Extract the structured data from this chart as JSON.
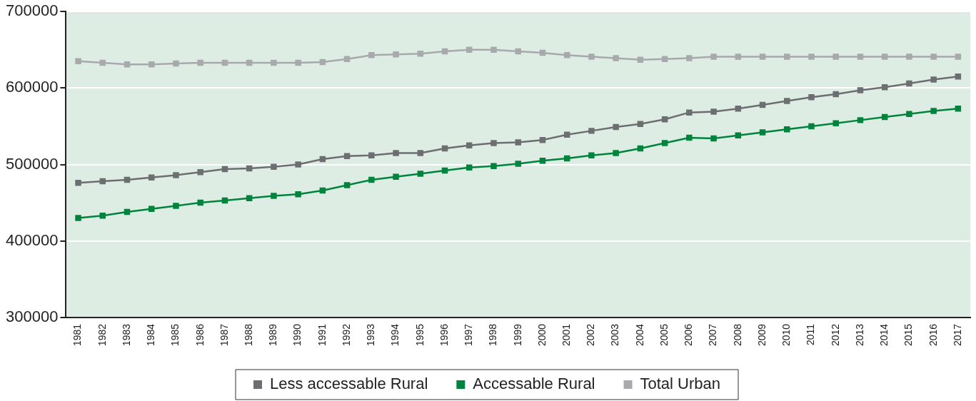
{
  "chart_data": {
    "type": "line",
    "categories": [
      "1981",
      "1982",
      "1983",
      "1984",
      "1985",
      "1986",
      "1987",
      "1988",
      "1989",
      "1990",
      "1991",
      "1992",
      "1993",
      "1994",
      "1995",
      "1996",
      "1997",
      "1998",
      "1999",
      "2000",
      "2001",
      "2002",
      "2003",
      "2004",
      "2005",
      "2006",
      "2007",
      "2008",
      "2009",
      "2010",
      "2011",
      "2012",
      "2013",
      "2014",
      "2015",
      "2016",
      "2017"
    ],
    "series": [
      {
        "name": "Less accessable Rural",
        "color": "#6d6e71",
        "values": [
          476000,
          478000,
          480000,
          483000,
          486000,
          490000,
          494000,
          495000,
          497000,
          500000,
          507000,
          511000,
          512000,
          515000,
          515000,
          521000,
          525000,
          528000,
          529000,
          532000,
          539000,
          544000,
          549000,
          553000,
          559000,
          568000,
          569000,
          573000,
          578000,
          583000,
          588000,
          592000,
          597000,
          601000,
          606000,
          611000,
          615000
        ]
      },
      {
        "name": "Accessable Rural",
        "color": "#00843d",
        "values": [
          430000,
          433000,
          438000,
          442000,
          446000,
          450000,
          453000,
          456000,
          459000,
          461000,
          466000,
          473000,
          480000,
          484000,
          488000,
          492000,
          496000,
          498000,
          501000,
          505000,
          508000,
          512000,
          515000,
          521000,
          528000,
          535000,
          534000,
          538000,
          542000,
          546000,
          550000,
          554000,
          558000,
          562000,
          566000,
          570000,
          573000
        ]
      },
      {
        "name": "Total Urban",
        "color": "#a7a9ac",
        "values": [
          635000,
          633000,
          631000,
          631000,
          632000,
          633000,
          633000,
          633000,
          633000,
          633000,
          634000,
          638000,
          643000,
          644000,
          645000,
          648000,
          650000,
          650000,
          648000,
          646000,
          643000,
          641000,
          639000,
          637000,
          638000,
          639000,
          641000,
          641000,
          641000,
          641000,
          641000,
          641000,
          641000,
          641000,
          641000,
          641000,
          641000
        ]
      }
    ],
    "ylim": [
      300000,
      700000
    ],
    "yticks": [
      300000,
      400000,
      500000,
      600000,
      700000
    ],
    "grid": "y",
    "legend": "bottom",
    "marker": "square",
    "line_style": "solid"
  }
}
